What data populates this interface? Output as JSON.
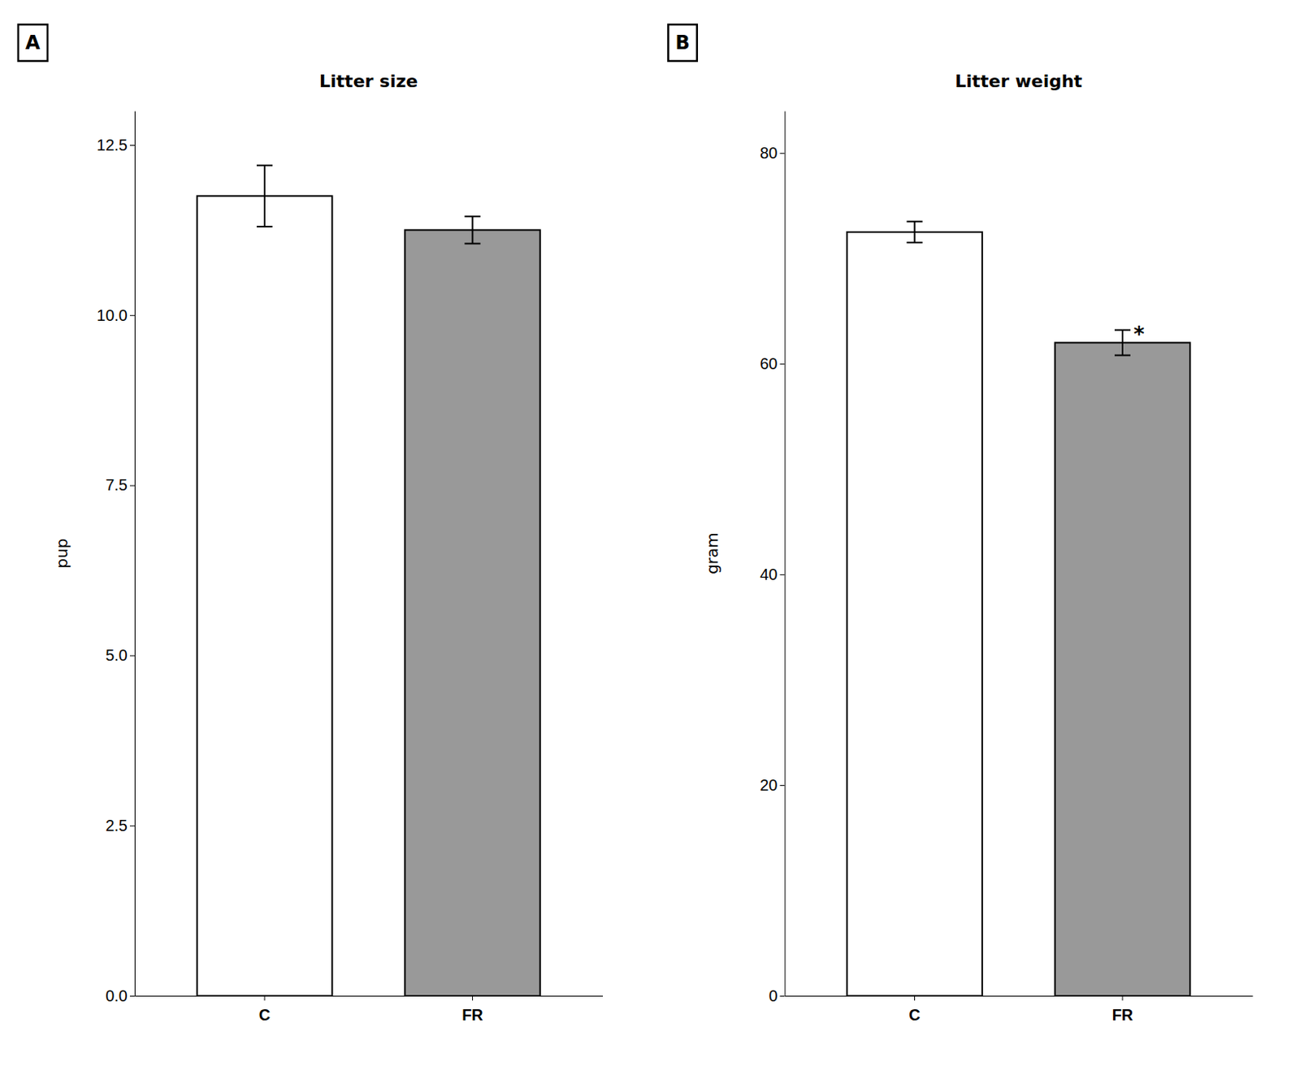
{
  "chart_data": [
    {
      "type": "bar",
      "title": "Litter size",
      "ylabel": "pup",
      "panel_label": "A",
      "categories": [
        "C",
        "FR"
      ],
      "values": [
        11.75,
        11.25
      ],
      "errors": [
        0.45,
        0.2
      ],
      "colors": [
        "#ffffff",
        "#999999"
      ],
      "ylim": [
        0,
        13.0
      ],
      "yticks": [
        {
          "value": 0.0,
          "label": "0.0"
        },
        {
          "value": 2.5,
          "label": "2.5"
        },
        {
          "value": 5.0,
          "label": "5.0"
        },
        {
          "value": 7.5,
          "label": "7.5"
        },
        {
          "value": 10.0,
          "label": "10.0"
        },
        {
          "value": 12.5,
          "label": "12.5"
        }
      ],
      "grid": false
    },
    {
      "type": "bar",
      "title": "Litter weight",
      "ylabel": "gram",
      "panel_label": "B",
      "categories": [
        "C",
        "FR"
      ],
      "values": [
        72.5,
        62.0
      ],
      "errors": [
        1.0,
        1.2
      ],
      "colors": [
        "#ffffff",
        "#999999"
      ],
      "ylim": [
        0,
        84
      ],
      "yticks": [
        0,
        20,
        40,
        60,
        80
      ],
      "annotations": [
        {
          "text": "*",
          "category": "FR"
        }
      ],
      "grid": false
    }
  ]
}
